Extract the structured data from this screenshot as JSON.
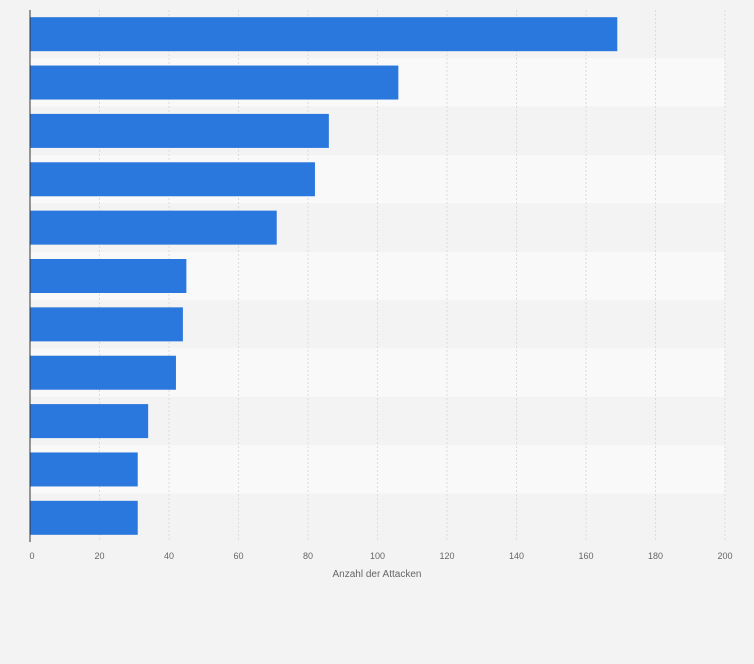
{
  "chart_data": {
    "type": "bar",
    "orientation": "horizontal",
    "title": "",
    "xlabel": "Anzahl der Attacken",
    "ylabel": "",
    "categories": [
      "",
      "",
      "",
      "",
      "",
      "",
      "",
      "",
      "",
      "",
      ""
    ],
    "values": [
      169,
      106,
      86,
      82,
      71,
      45,
      44,
      42,
      34,
      31,
      31
    ],
    "xlim": [
      0,
      200
    ],
    "xticks": [
      0,
      20,
      40,
      60,
      80,
      100,
      120,
      140,
      160,
      180,
      200
    ],
    "xtick_labels": [
      "0",
      "20",
      "40",
      "60",
      "80",
      "100",
      "120",
      "140",
      "160",
      "180",
      "200"
    ],
    "grid": true,
    "colors": {
      "bar": "#2a77dd",
      "band_even": "#f3f3f3",
      "band_odd": "#f9f9f9",
      "grid": "#dcdcdc",
      "axis": "#333333",
      "text": "#666666"
    }
  }
}
